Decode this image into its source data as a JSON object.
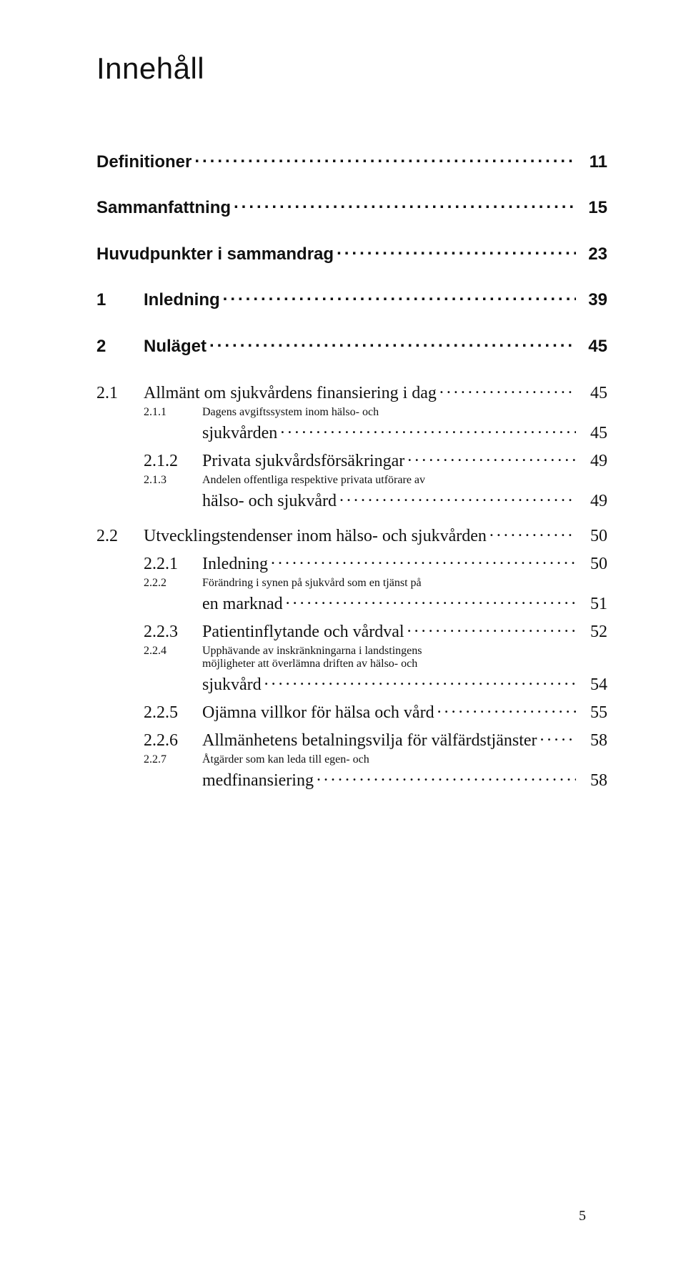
{
  "title": "Innehåll",
  "page_number": "5",
  "top_entries": [
    {
      "num": "",
      "label": "Definitioner",
      "page": "11"
    },
    {
      "num": "",
      "label": "Sammanfattning",
      "page": "15"
    },
    {
      "num": "",
      "label": "Huvudpunkter i sammandrag",
      "page": "23"
    },
    {
      "num": "1",
      "label": "Inledning",
      "page": "39"
    },
    {
      "num": "2",
      "label": "Nuläget",
      "page": "45"
    }
  ],
  "section_21": [
    {
      "num": "2.1",
      "label": "Allmänt om sjukvårdens finansiering i dag",
      "page": "45"
    },
    {
      "num": "2.1.1",
      "label_a": "Dagens avgiftssystem inom hälso- och",
      "label_b": "sjukvården",
      "page": "45"
    },
    {
      "num": "2.1.2",
      "label": "Privata sjukvårdsförsäkringar",
      "page": "49"
    },
    {
      "num": "2.1.3",
      "label_a": "Andelen offentliga respektive privata utförare av",
      "label_b": "hälso- och sjukvård",
      "page": "49"
    }
  ],
  "section_22": [
    {
      "num": "2.2",
      "label": "Utvecklingstendenser inom hälso- och sjukvården",
      "page": "50"
    },
    {
      "num": "2.2.1",
      "label": "Inledning",
      "page": "50"
    },
    {
      "num": "2.2.2",
      "label_a": "Förändring i synen på sjukvård som en tjänst på",
      "label_b": "en marknad",
      "page": "51"
    },
    {
      "num": "2.2.3",
      "label": "Patientinflytande och vårdval",
      "page": "52"
    },
    {
      "num": "2.2.4",
      "label_a": "Upphävande av inskränkningarna i landstingens",
      "label_b": "möjligheter att överlämna driften av hälso- och",
      "label_c": "sjukvård",
      "page": "54"
    },
    {
      "num": "2.2.5",
      "label": "Ojämna villkor för hälsa och vård",
      "page": "55"
    },
    {
      "num": "2.2.6",
      "label": "Allmänhetens betalningsvilja för välfärdstjänster",
      "page": "58"
    },
    {
      "num": "2.2.7",
      "label_a": "Åtgärder som kan leda till egen- och",
      "label_b": "medfinansiering",
      "page": "58"
    }
  ]
}
